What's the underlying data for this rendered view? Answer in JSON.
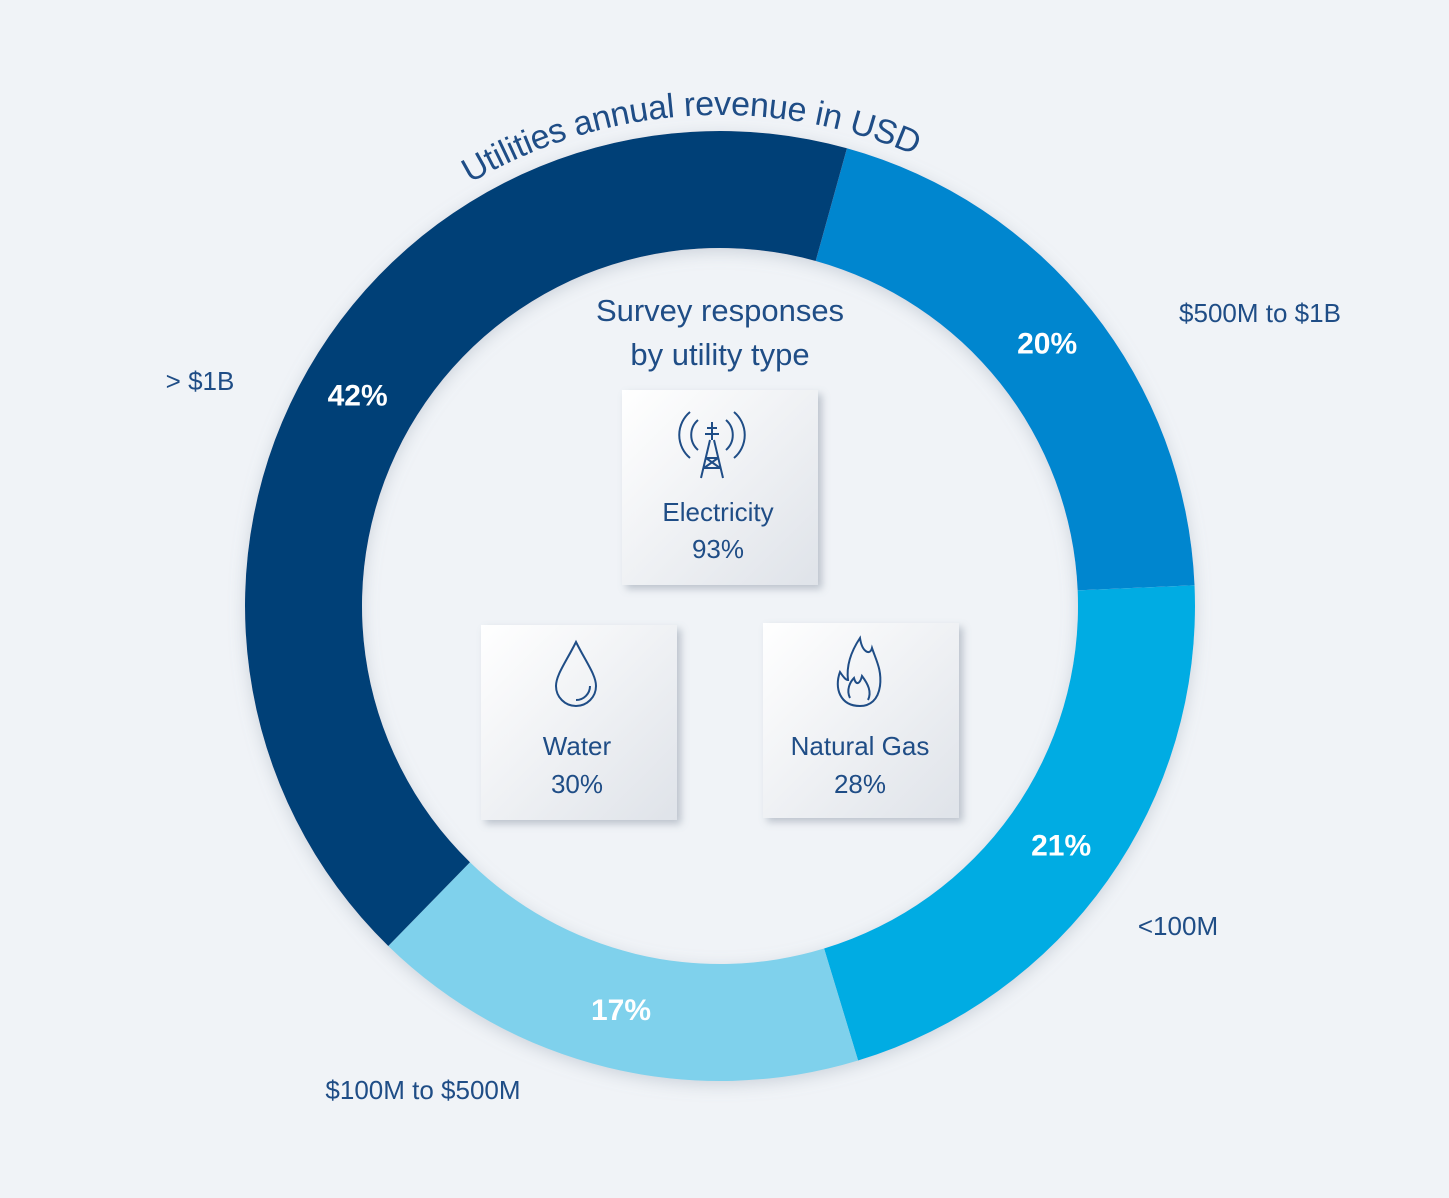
{
  "chart_data": {
    "type": "donut",
    "title": "Utilities annual revenue in USD",
    "categories": [
      "$500M to $1B",
      "<100M",
      "$100M to $500M",
      "> $1B"
    ],
    "values": [
      20,
      21,
      17,
      42
    ],
    "value_labels": [
      "20%",
      "21%",
      "17%",
      "42%"
    ],
    "colors": [
      "#0086cf",
      "#00ace3",
      "#7fd1ec",
      "#003f77"
    ]
  },
  "survey": {
    "title": [
      "Survey responses",
      "by utility type"
    ],
    "items": [
      {
        "name": "Electricity",
        "label": "93%"
      },
      {
        "name": "Water",
        "label": "30%"
      },
      {
        "name": "Natural Gas",
        "label": "28%"
      }
    ]
  }
}
